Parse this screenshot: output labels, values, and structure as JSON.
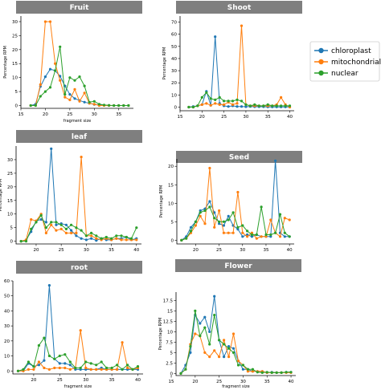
{
  "legend": [
    {
      "name": "chloroplast",
      "color": "#1f77b4"
    },
    {
      "name": "mitochondrial",
      "color": "#ff7f0e"
    },
    {
      "name": "nuclear",
      "color": "#2ca02c"
    }
  ],
  "chart_data": [
    {
      "type": "line",
      "title": "Fruit",
      "xlabel": "fragment size",
      "ylabel": "Percentage RPM",
      "xlim": [
        15,
        38
      ],
      "ylim": [
        -1,
        32
      ],
      "xticks": [
        15,
        20,
        25,
        30,
        35
      ],
      "yticks": [
        0,
        5,
        10,
        15,
        20,
        25,
        30
      ],
      "x": [
        17,
        18,
        19,
        20,
        21,
        22,
        23,
        24,
        25,
        26,
        27,
        28,
        29,
        30,
        31,
        32,
        33,
        34,
        35,
        36,
        37
      ],
      "series": [
        {
          "name": "chloroplast",
          "values": [
            0,
            0.5,
            6.8,
            10.3,
            13,
            12.5,
            10.5,
            7,
            4,
            2.5,
            1.8,
            1.2,
            0.8,
            0.4,
            0.2,
            0.1,
            0,
            0,
            0,
            0,
            0
          ]
        },
        {
          "name": "mitochondrial",
          "values": [
            0,
            0,
            7.5,
            30,
            30,
            15,
            9,
            3,
            2,
            5.8,
            1.5,
            4.5,
            0.8,
            0.5,
            0,
            0,
            0,
            0,
            0,
            0,
            0
          ]
        },
        {
          "name": "nuclear",
          "values": [
            0,
            0,
            3.3,
            5,
            6.5,
            12.5,
            21,
            4,
            10,
            9,
            10.3,
            7,
            1.2,
            1.5,
            0.5,
            0.2,
            0.1,
            0,
            0,
            0,
            0
          ]
        }
      ],
      "show_xlabel": true
    },
    {
      "type": "line",
      "title": "Shoot",
      "xlabel": "fragment size",
      "ylabel": "Percentage RPM",
      "xlim": [
        15,
        41
      ],
      "ylim": [
        -3,
        75
      ],
      "xticks": [
        15,
        20,
        25,
        30,
        35,
        40
      ],
      "yticks": [
        0,
        10,
        20,
        30,
        40,
        50,
        60,
        70
      ],
      "x": [
        17,
        18,
        19,
        20,
        21,
        22,
        23,
        24,
        25,
        26,
        27,
        28,
        29,
        30,
        31,
        32,
        33,
        34,
        35,
        36,
        37,
        38,
        39,
        40
      ],
      "series": [
        {
          "name": "chloroplast",
          "values": [
            0,
            0.5,
            1,
            2,
            13,
            1.5,
            58,
            3,
            1,
            0.5,
            1,
            0.5,
            0.5,
            0.3,
            0.5,
            0.3,
            0.3,
            0.3,
            0.2,
            0.2,
            0.2,
            0.2,
            0.2,
            0.2
          ]
        },
        {
          "name": "mitochondrial",
          "values": [
            0,
            0,
            1,
            2,
            3,
            1.5,
            3,
            2,
            2,
            4,
            2,
            3,
            67,
            2,
            1,
            1,
            1,
            1,
            1,
            1,
            2,
            8,
            2,
            0
          ]
        },
        {
          "name": "nuclear",
          "values": [
            0,
            0,
            1,
            8,
            12,
            7,
            6,
            8,
            5,
            5,
            5,
            6,
            5,
            2,
            1,
            2,
            1,
            1,
            2,
            1,
            1,
            1,
            1,
            1
          ]
        }
      ],
      "show_xlabel": false
    },
    {
      "type": "line",
      "title": "leaf",
      "xlabel": "fragment size",
      "ylabel": "Percentage RPM",
      "xlim": [
        16,
        41
      ],
      "ylim": [
        -1,
        35
      ],
      "xticks": [
        20,
        25,
        30,
        35,
        40
      ],
      "yticks": [
        0,
        5,
        10,
        15,
        20,
        25,
        30
      ],
      "x": [
        17,
        18,
        19,
        20,
        21,
        22,
        23,
        24,
        25,
        26,
        27,
        28,
        29,
        30,
        31,
        32,
        33,
        34,
        35,
        36,
        37,
        38,
        39,
        40
      ],
      "series": [
        {
          "name": "chloroplast",
          "values": [
            0,
            0.5,
            3.5,
            7.5,
            8,
            7,
            34,
            6,
            6.5,
            6,
            4,
            2,
            1,
            0.5,
            1,
            0.3,
            1,
            0.5,
            0.5,
            1,
            1,
            1.5,
            0.5,
            1
          ]
        },
        {
          "name": "mitochondrial",
          "values": [
            0,
            0.5,
            8,
            7.5,
            10,
            3,
            6,
            4,
            4.5,
            3,
            3,
            3,
            31,
            2,
            2,
            1,
            0.5,
            1,
            0.5,
            1,
            0.5,
            0.5,
            0.5,
            0.5
          ]
        },
        {
          "name": "nuclear",
          "values": [
            0,
            0,
            4.5,
            7,
            9.5,
            5,
            7,
            7,
            6,
            4.5,
            6,
            5,
            4,
            2,
            3,
            2,
            1,
            1.5,
            1,
            2,
            2,
            1.5,
            1,
            5
          ]
        }
      ],
      "show_xlabel": false
    },
    {
      "type": "line",
      "title": "Seed",
      "xlabel": "fragment size",
      "ylabel": "Percentage RPM",
      "xlim": [
        16,
        41
      ],
      "ylim": [
        -1,
        22
      ],
      "xticks": [
        20,
        25,
        30,
        35,
        40
      ],
      "yticks": [
        0,
        5,
        10,
        15,
        20
      ],
      "x": [
        17,
        18,
        19,
        20,
        21,
        22,
        23,
        24,
        25,
        26,
        27,
        28,
        29,
        30,
        31,
        32,
        33,
        34,
        35,
        36,
        37,
        38,
        39,
        40
      ],
      "series": [
        {
          "name": "chloroplast",
          "values": [
            0,
            1,
            3.5,
            5,
            8,
            8.5,
            10.5,
            7.5,
            4.5,
            4,
            6.5,
            4,
            3,
            1,
            1.5,
            1,
            1.5,
            1,
            1,
            1,
            21.5,
            2,
            1,
            1
          ]
        },
        {
          "name": "mitochondrial",
          "values": [
            0,
            0.5,
            2,
            4,
            6.5,
            4.5,
            19.5,
            3.5,
            8,
            2,
            2,
            2,
            13,
            2,
            1,
            2,
            0.5,
            1,
            1,
            5.5,
            2,
            1,
            6,
            5.5
          ]
        },
        {
          "name": "nuclear",
          "values": [
            0,
            0.5,
            2.5,
            5,
            7.5,
            8,
            9,
            6,
            5,
            5,
            5.5,
            7.5,
            3.5,
            4,
            2.5,
            1.5,
            1.5,
            9,
            1.5,
            1.5,
            2,
            7,
            2,
            1
          ]
        }
      ],
      "show_xlabel": false
    },
    {
      "type": "line",
      "title": "root",
      "xlabel": "fragment size",
      "ylabel": "Percentage RPM",
      "xlim": [
        16,
        41
      ],
      "ylim": [
        -2,
        60
      ],
      "xticks": [
        20,
        25,
        30,
        35,
        40
      ],
      "yticks": [
        0,
        10,
        20,
        30,
        40,
        50,
        60
      ],
      "x": [
        17,
        18,
        19,
        20,
        21,
        22,
        23,
        24,
        25,
        26,
        27,
        28,
        29,
        30,
        31,
        32,
        33,
        34,
        35,
        36,
        37,
        38,
        39,
        40
      ],
      "series": [
        {
          "name": "chloroplast",
          "values": [
            0,
            0,
            5,
            3,
            4,
            7,
            57,
            8,
            5,
            5,
            4,
            1,
            1,
            1,
            1,
            1,
            2,
            1,
            1,
            1,
            1,
            1,
            1,
            1
          ]
        },
        {
          "name": "mitochondrial",
          "values": [
            0,
            0,
            1,
            1,
            6,
            2,
            1,
            2,
            2,
            2,
            1,
            2,
            27,
            2,
            1,
            1,
            1,
            1,
            1,
            1,
            19,
            2,
            1,
            2
          ]
        },
        {
          "name": "nuclear",
          "values": [
            0,
            1,
            6,
            3,
            17,
            22,
            10,
            8,
            10,
            11,
            6,
            2,
            2,
            6,
            5,
            4,
            6,
            2,
            2,
            4,
            1,
            4,
            1,
            3
          ]
        }
      ],
      "show_xlabel": true
    },
    {
      "type": "line",
      "title": "Flower",
      "xlabel": "fragment size",
      "ylabel": "Percentage RPM",
      "xlim": [
        16,
        41
      ],
      "ylim": [
        -0.5,
        19.5
      ],
      "xticks": [
        15,
        20,
        25,
        30,
        35,
        40
      ],
      "yticks": [
        0,
        2.5,
        5.0,
        7.5,
        10.0,
        12.5,
        15.0,
        17.5
      ],
      "x": [
        17,
        18,
        19,
        20,
        21,
        22,
        23,
        24,
        25,
        26,
        27,
        28,
        29,
        30,
        31,
        32,
        33,
        34,
        35,
        36,
        37,
        38,
        39,
        40
      ],
      "series": [
        {
          "name": "chloroplast",
          "values": [
            0,
            2,
            5,
            14,
            12,
            13.5,
            10,
            18.5,
            8,
            4,
            6.5,
            6,
            3,
            1,
            1,
            0.5,
            0.5,
            0.5,
            0.2,
            0.3,
            0.2,
            0.2,
            0.3,
            0.3
          ]
        },
        {
          "name": "mitochondrial",
          "values": [
            0,
            1,
            7,
            9.5,
            9,
            5,
            4,
            5.5,
            4,
            8,
            4,
            9.5,
            3,
            2,
            0.5,
            0.5,
            0.5,
            0.5,
            0.2,
            0.2,
            0.2,
            0.2,
            0.2,
            0.2
          ]
        },
        {
          "name": "nuclear",
          "values": [
            0,
            1,
            6.5,
            15,
            9,
            11,
            7,
            14,
            8,
            7,
            6,
            5,
            2,
            2,
            1,
            1,
            0.3,
            0.2,
            0.3,
            0.2,
            0.2,
            0.2,
            0.3,
            0.3
          ]
        }
      ],
      "show_xlabel": true
    }
  ]
}
